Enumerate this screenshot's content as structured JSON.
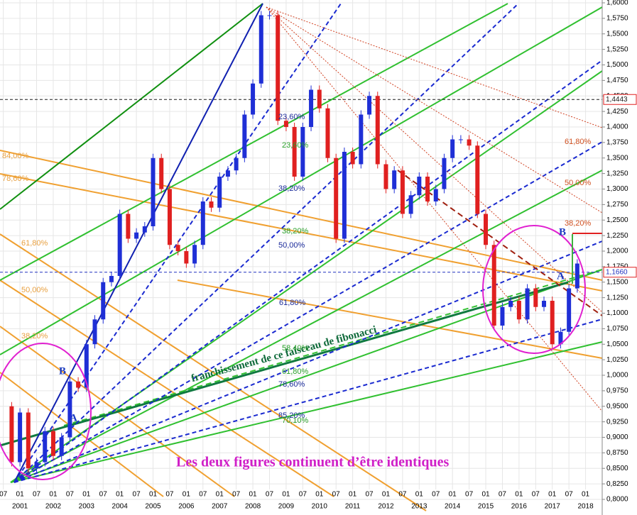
{
  "chart_data": {
    "type": "candlestick",
    "x": [
      2000.5,
      2000.75,
      2001.0,
      2001.25,
      2001.5,
      2001.75,
      2002.0,
      2002.25,
      2002.5,
      2002.75,
      2003.0,
      2003.25,
      2003.5,
      2003.75,
      2004.0,
      2004.25,
      2004.5,
      2004.75,
      2005.0,
      2005.25,
      2005.5,
      2005.75,
      2006.0,
      2006.25,
      2006.5,
      2006.75,
      2007.0,
      2007.25,
      2007.5,
      2007.75,
      2008.0,
      2008.25,
      2008.5,
      2008.75,
      2009.0,
      2009.25,
      2009.5,
      2009.75,
      2010.0,
      2010.25,
      2010.5,
      2010.75,
      2011.0,
      2011.25,
      2011.5,
      2011.75,
      2012.0,
      2012.25,
      2012.5,
      2012.75,
      2013.0,
      2013.25,
      2013.5,
      2013.75,
      2014.0,
      2014.25,
      2014.5,
      2014.75,
      2015.0,
      2015.25,
      2015.5,
      2015.75,
      2016.0,
      2016.25,
      2016.5,
      2016.75,
      2017.0,
      2017.25,
      2017.5,
      2017.75
    ],
    "values": [
      0.95,
      0.86,
      0.94,
      0.85,
      0.86,
      0.91,
      0.87,
      0.9,
      0.99,
      0.98,
      1.05,
      1.09,
      1.15,
      1.16,
      1.26,
      1.22,
      1.23,
      1.24,
      1.35,
      1.3,
      1.21,
      1.2,
      1.18,
      1.21,
      1.28,
      1.27,
      1.32,
      1.33,
      1.35,
      1.42,
      1.47,
      1.58,
      1.58,
      1.41,
      1.4,
      1.32,
      1.4,
      1.46,
      1.43,
      1.35,
      1.22,
      1.36,
      1.34,
      1.42,
      1.45,
      1.34,
      1.3,
      1.33,
      1.26,
      1.29,
      1.32,
      1.28,
      1.3,
      1.35,
      1.38,
      1.38,
      1.37,
      1.26,
      1.21,
      1.08,
      1.11,
      1.12,
      1.09,
      1.14,
      1.11,
      1.12,
      1.05,
      1.07,
      1.14,
      1.18
    ],
    "up_color": "#1f2fd6",
    "down_color": "#e02020",
    "xlim": [
      2000.4,
      2018.5
    ],
    "xticks": [
      {
        "value": 2000.5,
        "label": "07"
      },
      {
        "value": 2001.0,
        "label": "01"
      },
      {
        "value": 2001.5,
        "label": "07"
      },
      {
        "value": 2002.0,
        "label": "01"
      },
      {
        "value": 2002.5,
        "label": "07"
      },
      {
        "value": 2003.0,
        "label": "01"
      },
      {
        "value": 2003.5,
        "label": "07"
      },
      {
        "value": 2004.0,
        "label": "01"
      },
      {
        "value": 2004.5,
        "label": "07"
      },
      {
        "value": 2005.0,
        "label": "01"
      },
      {
        "value": 2005.5,
        "label": "07"
      },
      {
        "value": 2006.0,
        "label": "01"
      },
      {
        "value": 2006.5,
        "label": "07"
      },
      {
        "value": 2007.0,
        "label": "01"
      },
      {
        "value": 2007.5,
        "label": "07"
      },
      {
        "value": 2008.0,
        "label": "01"
      },
      {
        "value": 2008.5,
        "label": "07"
      },
      {
        "value": 2009.0,
        "label": "01"
      },
      {
        "value": 2009.5,
        "label": "07"
      },
      {
        "value": 2010.0,
        "label": "01"
      },
      {
        "value": 2010.5,
        "label": "07"
      },
      {
        "value": 2011.0,
        "label": "01"
      },
      {
        "value": 2011.5,
        "label": "07"
      },
      {
        "value": 2012.0,
        "label": "01"
      },
      {
        "value": 2012.5,
        "label": "07"
      },
      {
        "value": 2013.0,
        "label": "01"
      },
      {
        "value": 2013.5,
        "label": "07"
      },
      {
        "value": 2014.0,
        "label": "01"
      },
      {
        "value": 2014.5,
        "label": "07"
      },
      {
        "value": 2015.0,
        "label": "01"
      },
      {
        "value": 2015.5,
        "label": "07"
      },
      {
        "value": 2016.0,
        "label": "01"
      },
      {
        "value": 2016.5,
        "label": "07"
      },
      {
        "value": 2017.0,
        "label": "01"
      },
      {
        "value": 2017.5,
        "label": "07"
      },
      {
        "value": 2018.0,
        "label": "01"
      }
    ],
    "year_ticks": [
      2001,
      2002,
      2003,
      2004,
      2005,
      2006,
      2007,
      2008,
      2009,
      2010,
      2011,
      2012,
      2013,
      2014,
      2015,
      2016,
      2017,
      2018
    ],
    "ylim": [
      0.8,
      1.6
    ],
    "yticks": [
      {
        "value": 0.8,
        "label": "0,8000"
      },
      {
        "value": 0.825,
        "label": "0,8250"
      },
      {
        "value": 0.85,
        "label": "0,8500"
      },
      {
        "value": 0.875,
        "label": "0,8750"
      },
      {
        "value": 0.9,
        "label": "0,9000"
      },
      {
        "value": 0.925,
        "label": "0,9250"
      },
      {
        "value": 0.95,
        "label": "0,9500"
      },
      {
        "value": 0.975,
        "label": "0,9750"
      },
      {
        "value": 1.0,
        "label": "1,0000"
      },
      {
        "value": 1.025,
        "label": "1,0250"
      },
      {
        "value": 1.05,
        "label": "1,0500"
      },
      {
        "value": 1.075,
        "label": "1,0750"
      },
      {
        "value": 1.1,
        "label": "1,1000"
      },
      {
        "value": 1.125,
        "label": "1,1250"
      },
      {
        "value": 1.15,
        "label": "1,1500"
      },
      {
        "value": 1.175,
        "label": "1,1750"
      },
      {
        "value": 1.2,
        "label": "1,2000"
      },
      {
        "value": 1.225,
        "label": "1,2250"
      },
      {
        "value": 1.25,
        "label": "1,2500"
      },
      {
        "value": 1.275,
        "label": "1,2750"
      },
      {
        "value": 1.3,
        "label": "1,3000"
      },
      {
        "value": 1.325,
        "label": "1,3250"
      },
      {
        "value": 1.35,
        "label": "1,3500"
      },
      {
        "value": 1.375,
        "label": "1,3750"
      },
      {
        "value": 1.4,
        "label": "1,4000"
      },
      {
        "value": 1.425,
        "label": "1,4250"
      },
      {
        "value": 1.45,
        "label": "1,4500"
      },
      {
        "value": 1.475,
        "label": "1,4750"
      },
      {
        "value": 1.5,
        "label": "1,5000"
      },
      {
        "value": 1.525,
        "label": "1,5250"
      },
      {
        "value": 1.55,
        "label": "1,5500"
      },
      {
        "value": 1.575,
        "label": "1,5750"
      },
      {
        "value": 1.6,
        "label": "1,6000"
      }
    ],
    "grid": true,
    "levels": [
      {
        "value": 1.4443,
        "label": "1,4443",
        "color": "#1a1a1a"
      },
      {
        "value": 1.166,
        "label": "1,1660",
        "color": "#2030c0"
      }
    ],
    "annotations": [
      {
        "text": "84,00%",
        "color": "#e8a040"
      },
      {
        "text": "78,60%",
        "color": "#e8a040"
      },
      {
        "text": "61,80%",
        "color": "#e8a040"
      },
      {
        "text": "50,00%",
        "color": "#e8a040"
      },
      {
        "text": "38,20%",
        "color": "#e8a040"
      },
      {
        "text": "23,60%",
        "color": "#1a2a9a"
      },
      {
        "text": "23,60%",
        "color": "#2aa02a"
      },
      {
        "text": "38,20%",
        "color": "#1a2a9a"
      },
      {
        "text": "38,20%",
        "color": "#2aa02a"
      },
      {
        "text": "50,00%",
        "color": "#1a2a9a"
      },
      {
        "text": "61,80%",
        "color": "#1a2a9a"
      },
      {
        "text": "58,40%",
        "color": "#2aa02a"
      },
      {
        "text": "61,80%",
        "color": "#2aa02a"
      },
      {
        "text": "78,60%",
        "color": "#1a2a9a"
      },
      {
        "text": "85,20%",
        "color": "#1a2a9a"
      },
      {
        "text": "70,10%",
        "color": "#2aa02a"
      },
      {
        "text": "61,80%",
        "color": "#d05020"
      },
      {
        "text": "50,00%",
        "color": "#d05020"
      },
      {
        "text": "38,20%",
        "color": "#d05020"
      },
      {
        "text": "A",
        "color": "#1a3ac0"
      },
      {
        "text": "B",
        "color": "#1a3ac0"
      },
      {
        "text": "A",
        "color": "#1a3ac0"
      },
      {
        "text": "B",
        "color": "#1a3ac0"
      }
    ],
    "note": "franchissement de ce faisceau de fibonacci",
    "caption": "Les deux figures continuent d’être identiques"
  }
}
